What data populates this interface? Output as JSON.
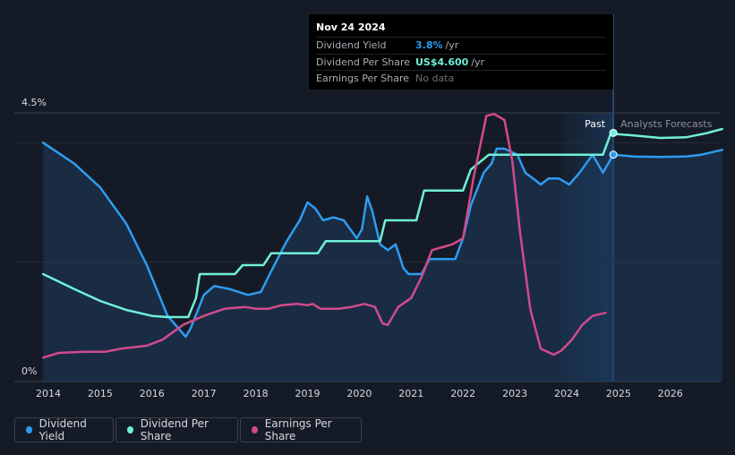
{
  "tooltip": {
    "date": "Nov 24 2024",
    "rows": [
      {
        "label": "Dividend Yield",
        "value": "3.8%",
        "unit": "/yr",
        "color": "#2d9cf0"
      },
      {
        "label": "Dividend Per Share",
        "value": "US$4.600",
        "unit": "/yr",
        "color": "#6ff0d8"
      },
      {
        "label": "Earnings Per Share",
        "value": "No data",
        "unit": "",
        "color": "#6b7079"
      }
    ]
  },
  "labels": {
    "past": "Past",
    "forecast": "Analysts Forecasts"
  },
  "legend": [
    {
      "label": "Dividend Yield",
      "color": "#2d9cf0"
    },
    {
      "label": "Dividend Per Share",
      "color": "#6ff0d8"
    },
    {
      "label": "Earnings Per Share",
      "color": "#d24a8b"
    }
  ],
  "chart_data": {
    "type": "line",
    "xlim": [
      2013.9,
      2027.0
    ],
    "ylim": [
      0,
      4.5
    ],
    "y_ticks": [
      {
        "v": 4.5,
        "label": "4.5%"
      },
      {
        "v": 0,
        "label": "0%"
      }
    ],
    "x_ticks": [
      "2014",
      "2015",
      "2016",
      "2017",
      "2018",
      "2019",
      "2020",
      "2021",
      "2022",
      "2023",
      "2024",
      "2025",
      "2026"
    ],
    "gridlines": [
      2.0,
      4.0
    ],
    "forecast_start": 2024.9,
    "shade_start": 2023.9,
    "series": [
      {
        "name": "Dividend Yield",
        "color": "#2d9cf0",
        "fill": true,
        "points": [
          [
            2013.9,
            4.0
          ],
          [
            2014.5,
            3.65
          ],
          [
            2015.0,
            3.25
          ],
          [
            2015.5,
            2.65
          ],
          [
            2015.9,
            1.95
          ],
          [
            2016.3,
            1.1
          ],
          [
            2016.65,
            0.75
          ],
          [
            2016.75,
            0.9
          ],
          [
            2017.0,
            1.45
          ],
          [
            2017.2,
            1.6
          ],
          [
            2017.5,
            1.55
          ],
          [
            2017.85,
            1.45
          ],
          [
            2018.1,
            1.5
          ],
          [
            2018.3,
            1.85
          ],
          [
            2018.6,
            2.35
          ],
          [
            2018.85,
            2.7
          ],
          [
            2019.0,
            3.0
          ],
          [
            2019.15,
            2.9
          ],
          [
            2019.3,
            2.7
          ],
          [
            2019.5,
            2.75
          ],
          [
            2019.7,
            2.7
          ],
          [
            2019.95,
            2.4
          ],
          [
            2020.05,
            2.55
          ],
          [
            2020.15,
            3.1
          ],
          [
            2020.25,
            2.85
          ],
          [
            2020.4,
            2.3
          ],
          [
            2020.55,
            2.2
          ],
          [
            2020.7,
            2.3
          ],
          [
            2020.85,
            1.9
          ],
          [
            2020.95,
            1.8
          ],
          [
            2021.2,
            1.8
          ],
          [
            2021.35,
            2.05
          ],
          [
            2021.6,
            2.05
          ],
          [
            2021.85,
            2.05
          ],
          [
            2022.0,
            2.4
          ],
          [
            2022.15,
            2.95
          ],
          [
            2022.4,
            3.5
          ],
          [
            2022.55,
            3.65
          ],
          [
            2022.65,
            3.9
          ],
          [
            2022.8,
            3.9
          ],
          [
            2023.05,
            3.8
          ],
          [
            2023.2,
            3.5
          ],
          [
            2023.35,
            3.4
          ],
          [
            2023.5,
            3.3
          ],
          [
            2023.65,
            3.4
          ],
          [
            2023.85,
            3.4
          ],
          [
            2024.05,
            3.3
          ],
          [
            2024.25,
            3.5
          ],
          [
            2024.5,
            3.8
          ],
          [
            2024.7,
            3.5
          ],
          [
            2024.9,
            3.8
          ],
          [
            2025.3,
            3.77
          ],
          [
            2025.8,
            3.76
          ],
          [
            2026.3,
            3.77
          ],
          [
            2026.6,
            3.8
          ],
          [
            2027.0,
            3.88
          ]
        ]
      },
      {
        "name": "Dividend Per Share",
        "color": "#6ff0d8",
        "fill": false,
        "points": [
          [
            2013.9,
            1.8
          ],
          [
            2014.5,
            1.55
          ],
          [
            2015.0,
            1.35
          ],
          [
            2015.5,
            1.2
          ],
          [
            2016.0,
            1.1
          ],
          [
            2016.3,
            1.08
          ],
          [
            2016.7,
            1.08
          ],
          [
            2016.85,
            1.4
          ],
          [
            2016.92,
            1.8
          ],
          [
            2017.6,
            1.8
          ],
          [
            2017.75,
            1.95
          ],
          [
            2018.15,
            1.95
          ],
          [
            2018.3,
            2.15
          ],
          [
            2019.2,
            2.15
          ],
          [
            2019.35,
            2.35
          ],
          [
            2020.4,
            2.35
          ],
          [
            2020.5,
            2.7
          ],
          [
            2021.1,
            2.7
          ],
          [
            2021.25,
            3.2
          ],
          [
            2022.0,
            3.2
          ],
          [
            2022.15,
            3.55
          ],
          [
            2022.5,
            3.8
          ],
          [
            2024.7,
            3.8
          ],
          [
            2024.85,
            4.15
          ],
          [
            2025.3,
            4.12
          ],
          [
            2025.8,
            4.08
          ],
          [
            2026.3,
            4.09
          ],
          [
            2026.7,
            4.16
          ],
          [
            2027.0,
            4.23
          ]
        ]
      },
      {
        "name": "Earnings Per Share",
        "color": "#d24a8b",
        "fill": false,
        "points": [
          [
            2013.9,
            0.4
          ],
          [
            2014.2,
            0.48
          ],
          [
            2014.7,
            0.5
          ],
          [
            2015.1,
            0.5
          ],
          [
            2015.4,
            0.55
          ],
          [
            2015.9,
            0.6
          ],
          [
            2016.2,
            0.7
          ],
          [
            2016.6,
            0.95
          ],
          [
            2017.0,
            1.1
          ],
          [
            2017.4,
            1.22
          ],
          [
            2017.8,
            1.25
          ],
          [
            2018.0,
            1.22
          ],
          [
            2018.25,
            1.22
          ],
          [
            2018.5,
            1.28
          ],
          [
            2018.8,
            1.3
          ],
          [
            2019.0,
            1.28
          ],
          [
            2019.1,
            1.3
          ],
          [
            2019.25,
            1.22
          ],
          [
            2019.6,
            1.22
          ],
          [
            2019.85,
            1.25
          ],
          [
            2020.1,
            1.3
          ],
          [
            2020.3,
            1.25
          ],
          [
            2020.45,
            0.97
          ],
          [
            2020.55,
            0.95
          ],
          [
            2020.75,
            1.25
          ],
          [
            2021.0,
            1.4
          ],
          [
            2021.2,
            1.75
          ],
          [
            2021.4,
            2.2
          ],
          [
            2021.6,
            2.25
          ],
          [
            2021.8,
            2.3
          ],
          [
            2022.0,
            2.4
          ],
          [
            2022.2,
            3.4
          ],
          [
            2022.45,
            4.45
          ],
          [
            2022.6,
            4.48
          ],
          [
            2022.8,
            4.38
          ],
          [
            2022.95,
            3.7
          ],
          [
            2023.1,
            2.5
          ],
          [
            2023.3,
            1.2
          ],
          [
            2023.5,
            0.55
          ],
          [
            2023.75,
            0.45
          ],
          [
            2023.9,
            0.52
          ],
          [
            2024.1,
            0.7
          ],
          [
            2024.3,
            0.95
          ],
          [
            2024.5,
            1.1
          ],
          [
            2024.75,
            1.15
          ]
        ]
      }
    ]
  }
}
